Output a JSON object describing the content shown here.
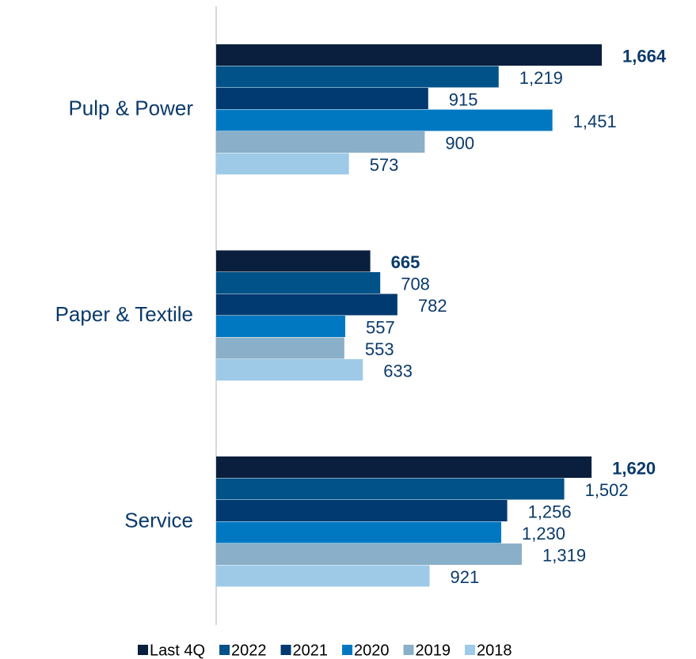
{
  "chart_data": {
    "type": "bar",
    "orientation": "horizontal",
    "categories": [
      "Pulp & Power",
      "Paper & Textile",
      "Service"
    ],
    "series": [
      {
        "name": "Last 4Q",
        "color": "#0a1f3d",
        "values": [
          1664,
          665,
          1620
        ],
        "value_labels": [
          "1,664",
          "665",
          "1,620"
        ]
      },
      {
        "name": "2022",
        "color": "#005288",
        "values": [
          1219,
          708,
          1502
        ],
        "value_labels": [
          "1,219",
          "708",
          "1,502"
        ]
      },
      {
        "name": "2021",
        "color": "#003a70",
        "values": [
          915,
          782,
          1256
        ],
        "value_labels": [
          "915",
          "782",
          "1,256"
        ]
      },
      {
        "name": "2020",
        "color": "#0078c1",
        "values": [
          1451,
          557,
          1230
        ],
        "value_labels": [
          "1,451",
          "557",
          "1,230"
        ]
      },
      {
        "name": "2019",
        "color": "#8aafc8",
        "values": [
          900,
          553,
          1319
        ],
        "value_labels": [
          "900",
          "553",
          "1,319"
        ]
      },
      {
        "name": "2018",
        "color": "#9ecae8",
        "values": [
          573,
          633,
          921
        ],
        "value_labels": [
          "573",
          "633",
          "921"
        ]
      }
    ],
    "legend": "bottom"
  }
}
